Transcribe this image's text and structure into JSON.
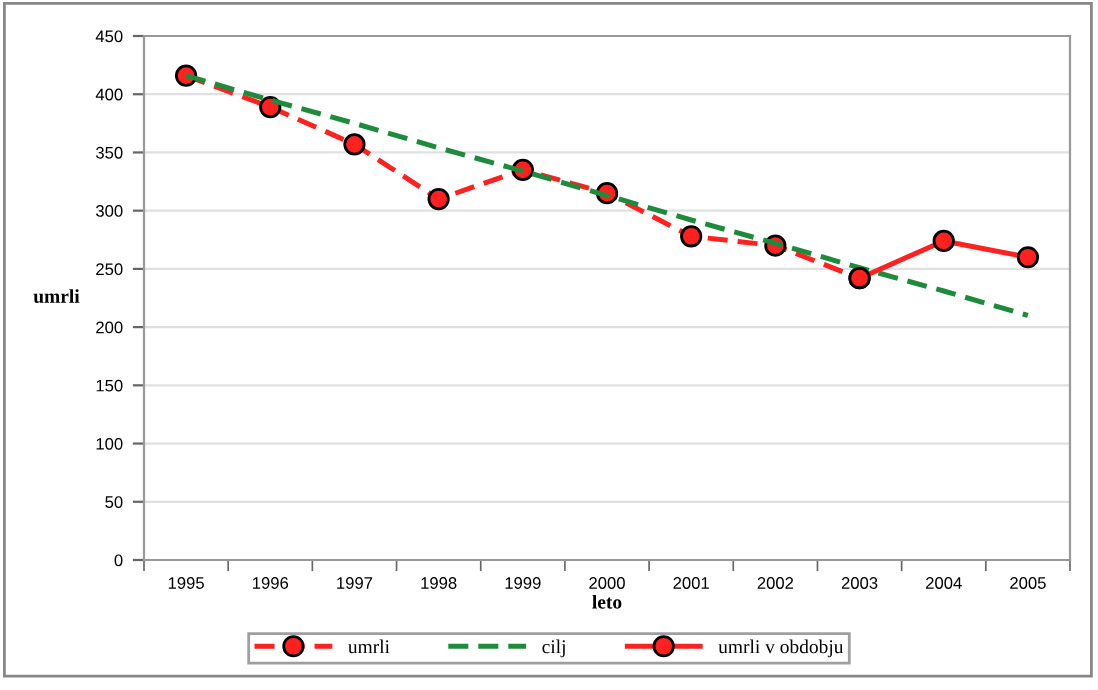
{
  "chart_data": {
    "type": "line",
    "xlabel": "leto",
    "ylabel": "umrli",
    "categories": [
      "1995",
      "1996",
      "1997",
      "1998",
      "1999",
      "2000",
      "2001",
      "2002",
      "2003",
      "2004",
      "2005"
    ],
    "series": [
      {
        "name": "umrli",
        "color": "#ff2020",
        "marker": "circle",
        "line_style": "dashed",
        "values": [
          416,
          389,
          357,
          310,
          335,
          315,
          278,
          270,
          242,
          null,
          null
        ]
      },
      {
        "name": "cilj",
        "color": "#1e8a3c",
        "marker": "none",
        "line_style": "dashed",
        "values": [
          416,
          395,
          375,
          354,
          334,
          313,
          292,
          272,
          251,
          231,
          210
        ]
      },
      {
        "name": "umrli v obdobju",
        "color": "#ff2020",
        "marker": "circle",
        "line_style": "solid",
        "values": [
          null,
          null,
          null,
          null,
          null,
          null,
          null,
          null,
          242,
          274,
          260
        ]
      }
    ],
    "ylim": [
      0,
      450
    ],
    "yticks": [
      0,
      50,
      100,
      150,
      200,
      250,
      300,
      350,
      400,
      450
    ],
    "grid": "y",
    "legend": "bottom"
  }
}
